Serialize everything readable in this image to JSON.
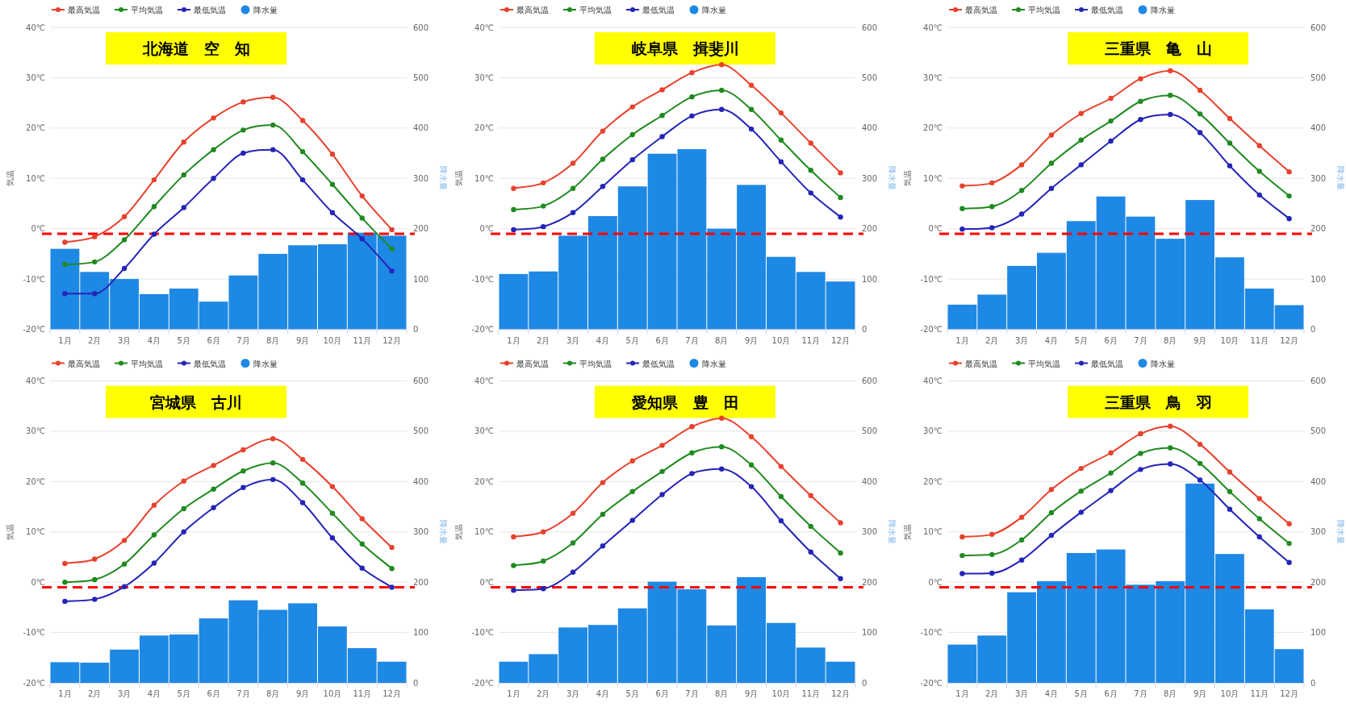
{
  "chart_data": [
    {
      "type": "line",
      "title": "北海道　空　知",
      "ylabel": "気温",
      "y2label": "降水量",
      "categories": [
        "1月",
        "2月",
        "3月",
        "4月",
        "5月",
        "6月",
        "7月",
        "8月",
        "9月",
        "10月",
        "11月",
        "12月"
      ],
      "ylim": [
        -20,
        40
      ],
      "yticks": [
        {
          "value": -20,
          "label": "-20℃"
        },
        {
          "value": -10,
          "label": "-10℃"
        },
        {
          "value": 0,
          "label": "0℃"
        },
        {
          "value": 10,
          "label": "10℃"
        },
        {
          "value": 20,
          "label": "20℃"
        },
        {
          "value": 30,
          "label": "30℃"
        },
        {
          "value": 40,
          "label": "40℃"
        }
      ],
      "y2lim": [
        0,
        600
      ],
      "y2ticks": [
        0,
        100,
        200,
        300,
        400,
        500,
        600
      ],
      "grid": "y",
      "legend": "top",
      "marker": "circle",
      "series": [
        {
          "name": "最高気温",
          "color": "#e8412c",
          "values": [
            -2.7,
            -1.6,
            2.4,
            9.7,
            17.2,
            22.0,
            25.2,
            26.1,
            21.5,
            14.8,
            6.5,
            -0.2
          ]
        },
        {
          "name": "平均気温",
          "color": "#1f8a1f",
          "values": [
            -7.1,
            -6.6,
            -2.2,
            4.4,
            10.7,
            15.7,
            19.6,
            20.6,
            15.3,
            8.8,
            2.1,
            -4.0
          ]
        },
        {
          "name": "最低気温",
          "color": "#2424b8",
          "values": [
            -12.9,
            -12.9,
            -7.9,
            -1.1,
            4.2,
            10.0,
            15.0,
            15.7,
            9.7,
            3.2,
            -2.0,
            -8.4
          ]
        },
        {
          "name": "降水量",
          "type": "bar",
          "axis": "y2",
          "color": "#1e88e5",
          "values": [
            160,
            114,
            100,
            70,
            81,
            55,
            107,
            150,
            167,
            169,
            192,
            186
          ]
        }
      ],
      "ref_lines": [
        {
          "axis": "y",
          "value": -1,
          "color": "#ff0000",
          "line_style": "dashed"
        }
      ]
    },
    {
      "type": "line",
      "title": "岐阜県　揖斐川",
      "ylabel": "気温",
      "y2label": "降水量",
      "categories": [
        "1月",
        "2月",
        "3月",
        "4月",
        "5月",
        "6月",
        "7月",
        "8月",
        "9月",
        "10月",
        "11月",
        "12月"
      ],
      "ylim": [
        -20,
        40
      ],
      "yticks": [
        {
          "value": -20,
          "label": "-20℃"
        },
        {
          "value": -10,
          "label": "-10℃"
        },
        {
          "value": 0,
          "label": "0℃"
        },
        {
          "value": 10,
          "label": "10℃"
        },
        {
          "value": 20,
          "label": "20℃"
        },
        {
          "value": 30,
          "label": "30℃"
        },
        {
          "value": 40,
          "label": "40℃"
        }
      ],
      "y2lim": [
        0,
        600
      ],
      "y2ticks": [
        0,
        100,
        200,
        300,
        400,
        500,
        600
      ],
      "grid": "y",
      "legend": "top",
      "marker": "circle",
      "series": [
        {
          "name": "最高気温",
          "color": "#e8412c",
          "values": [
            8.0,
            9.1,
            13.0,
            19.4,
            24.2,
            27.6,
            31.0,
            32.6,
            28.5,
            23.0,
            17.0,
            11.1
          ]
        },
        {
          "name": "平均気温",
          "color": "#1f8a1f",
          "values": [
            3.8,
            4.5,
            8.0,
            13.8,
            18.7,
            22.5,
            26.2,
            27.5,
            23.7,
            17.6,
            11.6,
            6.2
          ]
        },
        {
          "name": "最低気温",
          "color": "#2424b8",
          "values": [
            -0.2,
            0.4,
            3.2,
            8.4,
            13.7,
            18.3,
            22.4,
            23.7,
            19.8,
            13.3,
            7.1,
            2.3
          ]
        },
        {
          "name": "降水量",
          "type": "bar",
          "axis": "y2",
          "color": "#1e88e5",
          "values": [
            110,
            115,
            186,
            225,
            284,
            349,
            358,
            200,
            287,
            144,
            114,
            95
          ]
        }
      ],
      "ref_lines": [
        {
          "axis": "y",
          "value": -1,
          "color": "#ff0000",
          "line_style": "dashed"
        }
      ]
    },
    {
      "type": "line",
      "title": "三重県　亀　山",
      "ylabel": "気温",
      "y2label": "降水量",
      "categories": [
        "1月",
        "2月",
        "3月",
        "4月",
        "5月",
        "6月",
        "7月",
        "8月",
        "9月",
        "10月",
        "11月",
        "12月"
      ],
      "ylim": [
        -20,
        40
      ],
      "yticks": [
        {
          "value": -20,
          "label": "-20℃"
        },
        {
          "value": -10,
          "label": "-10℃"
        },
        {
          "value": 0,
          "label": "0℃"
        },
        {
          "value": 10,
          "label": "10℃"
        },
        {
          "value": 20,
          "label": "20℃"
        },
        {
          "value": 30,
          "label": "30℃"
        },
        {
          "value": 40,
          "label": "40℃"
        }
      ],
      "y2lim": [
        0,
        600
      ],
      "y2ticks": [
        0,
        100,
        200,
        300,
        400,
        500,
        600
      ],
      "grid": "y",
      "legend": "top",
      "marker": "circle",
      "series": [
        {
          "name": "最高気温",
          "color": "#e8412c",
          "values": [
            8.5,
            9.1,
            12.7,
            18.6,
            22.9,
            25.9,
            29.8,
            31.4,
            27.5,
            21.9,
            16.5,
            11.3
          ]
        },
        {
          "name": "平均気温",
          "color": "#1f8a1f",
          "values": [
            4.0,
            4.4,
            7.6,
            13.0,
            17.6,
            21.4,
            25.3,
            26.5,
            22.8,
            17.0,
            11.4,
            6.5
          ]
        },
        {
          "name": "最低気温",
          "color": "#2424b8",
          "values": [
            -0.1,
            0.2,
            2.9,
            8.0,
            12.7,
            17.4,
            21.7,
            22.7,
            19.1,
            12.5,
            6.7,
            2.0
          ]
        },
        {
          "name": "降水量",
          "type": "bar",
          "axis": "y2",
          "color": "#1e88e5",
          "values": [
            49,
            69,
            126,
            152,
            215,
            264,
            224,
            180,
            257,
            143,
            81,
            48
          ]
        }
      ],
      "ref_lines": [
        {
          "axis": "y",
          "value": -1,
          "color": "#ff0000",
          "line_style": "dashed"
        }
      ]
    },
    {
      "type": "line",
      "title": "宮城県　古川",
      "ylabel": "気温",
      "y2label": "降水量",
      "categories": [
        "1月",
        "2月",
        "3月",
        "4月",
        "5月",
        "6月",
        "7月",
        "8月",
        "9月",
        "10月",
        "11月",
        "12月"
      ],
      "ylim": [
        -20,
        40
      ],
      "yticks": [
        {
          "value": -20,
          "label": "-20℃"
        },
        {
          "value": -10,
          "label": "-10℃"
        },
        {
          "value": 0,
          "label": "0℃"
        },
        {
          "value": 10,
          "label": "10℃"
        },
        {
          "value": 20,
          "label": "20℃"
        },
        {
          "value": 30,
          "label": "30℃"
        },
        {
          "value": 40,
          "label": "40℃"
        }
      ],
      "y2lim": [
        0,
        600
      ],
      "y2ticks": [
        0,
        100,
        200,
        300,
        400,
        500,
        600
      ],
      "grid": "y",
      "legend": "top",
      "marker": "circle",
      "series": [
        {
          "name": "最高気温",
          "color": "#e8412c",
          "values": [
            3.7,
            4.6,
            8.3,
            15.3,
            20.1,
            23.2,
            26.3,
            28.5,
            24.4,
            19.0,
            12.6,
            6.9
          ]
        },
        {
          "name": "平均気温",
          "color": "#1f8a1f",
          "values": [
            0.0,
            0.5,
            3.6,
            9.4,
            14.6,
            18.5,
            22.1,
            23.7,
            19.7,
            13.7,
            7.6,
            2.7
          ]
        },
        {
          "name": "最低気温",
          "color": "#2424b8",
          "values": [
            -3.8,
            -3.4,
            -0.9,
            3.8,
            10.0,
            14.8,
            18.8,
            20.4,
            15.8,
            8.8,
            2.8,
            -1.0
          ]
        },
        {
          "name": "降水量",
          "type": "bar",
          "axis": "y2",
          "color": "#1e88e5",
          "values": [
            41,
            40,
            66,
            94,
            96,
            128,
            164,
            145,
            158,
            112,
            69,
            42
          ]
        }
      ],
      "ref_lines": [
        {
          "axis": "y",
          "value": -1,
          "color": "#ff0000",
          "line_style": "dashed"
        }
      ]
    },
    {
      "type": "line",
      "title": "愛知県　豊　田",
      "ylabel": "気温",
      "y2label": "降水量",
      "categories": [
        "1月",
        "2月",
        "3月",
        "4月",
        "5月",
        "6月",
        "7月",
        "8月",
        "9月",
        "10月",
        "11月",
        "12月"
      ],
      "ylim": [
        -20,
        40
      ],
      "yticks": [
        {
          "value": -20,
          "label": "-20℃"
        },
        {
          "value": -10,
          "label": "-10℃"
        },
        {
          "value": 0,
          "label": "0℃"
        },
        {
          "value": 10,
          "label": "10℃"
        },
        {
          "value": 20,
          "label": "20℃"
        },
        {
          "value": 30,
          "label": "30℃"
        },
        {
          "value": 40,
          "label": "40℃"
        }
      ],
      "y2lim": [
        0,
        600
      ],
      "y2ticks": [
        0,
        100,
        200,
        300,
        400,
        500,
        600
      ],
      "grid": "y",
      "legend": "top",
      "marker": "circle",
      "series": [
        {
          "name": "最高気温",
          "color": "#e8412c",
          "values": [
            9.0,
            10.0,
            13.7,
            19.8,
            24.1,
            27.2,
            30.9,
            32.6,
            28.9,
            23.0,
            17.2,
            11.8
          ]
        },
        {
          "name": "平均気温",
          "color": "#1f8a1f",
          "values": [
            3.3,
            4.2,
            7.8,
            13.5,
            18.0,
            22.0,
            25.7,
            26.9,
            23.3,
            17.0,
            11.1,
            5.8
          ]
        },
        {
          "name": "最低気温",
          "color": "#2424b8",
          "values": [
            -1.6,
            -1.3,
            2.0,
            7.2,
            12.3,
            17.4,
            21.6,
            22.5,
            19.0,
            12.2,
            6.0,
            0.7
          ]
        },
        {
          "name": "降水量",
          "type": "bar",
          "axis": "y2",
          "color": "#1e88e5",
          "values": [
            42,
            57,
            110,
            115,
            148,
            201,
            186,
            114,
            210,
            119,
            70,
            42
          ]
        }
      ],
      "ref_lines": [
        {
          "axis": "y",
          "value": -1,
          "color": "#ff0000",
          "line_style": "dashed"
        }
      ]
    },
    {
      "type": "line",
      "title": "三重県　鳥　羽",
      "ylabel": "気温",
      "y2label": "降水量",
      "categories": [
        "1月",
        "2月",
        "3月",
        "4月",
        "5月",
        "6月",
        "7月",
        "8月",
        "9月",
        "10月",
        "11月",
        "12月"
      ],
      "ylim": [
        -20,
        40
      ],
      "yticks": [
        {
          "value": -20,
          "label": "-20℃"
        },
        {
          "value": -10,
          "label": "-10℃"
        },
        {
          "value": 0,
          "label": "0℃"
        },
        {
          "value": 10,
          "label": "10℃"
        },
        {
          "value": 20,
          "label": "20℃"
        },
        {
          "value": 30,
          "label": "30℃"
        },
        {
          "value": 40,
          "label": "40℃"
        }
      ],
      "y2lim": [
        0,
        600
      ],
      "y2ticks": [
        0,
        100,
        200,
        300,
        400,
        500,
        600
      ],
      "grid": "y",
      "legend": "top",
      "marker": "circle",
      "series": [
        {
          "name": "最高気温",
          "color": "#e8412c",
          "values": [
            9.0,
            9.5,
            12.9,
            18.4,
            22.6,
            25.7,
            29.5,
            31.0,
            27.4,
            21.9,
            16.6,
            11.6
          ]
        },
        {
          "name": "平均気温",
          "color": "#1f8a1f",
          "values": [
            5.3,
            5.5,
            8.4,
            13.8,
            18.1,
            21.7,
            25.6,
            26.7,
            23.6,
            18.0,
            12.6,
            7.7
          ]
        },
        {
          "name": "最低気温",
          "color": "#2424b8",
          "values": [
            1.7,
            1.8,
            4.4,
            9.3,
            13.9,
            18.2,
            22.4,
            23.5,
            20.3,
            14.5,
            9.0,
            3.9
          ]
        },
        {
          "name": "降水量",
          "type": "bar",
          "axis": "y2",
          "color": "#1e88e5",
          "values": [
            76,
            94,
            180,
            202,
            258,
            265,
            195,
            202,
            396,
            256,
            146,
            67
          ]
        }
      ],
      "ref_lines": [
        {
          "axis": "y",
          "value": -1,
          "color": "#ff0000",
          "line_style": "dashed"
        }
      ]
    }
  ]
}
